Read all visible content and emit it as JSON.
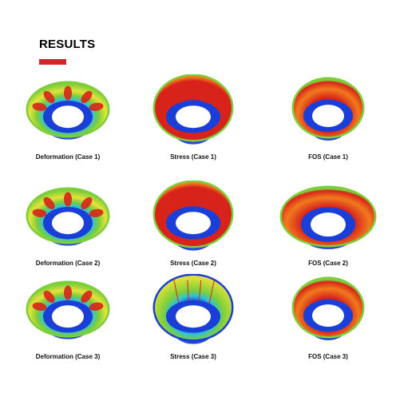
{
  "header": {
    "title": "RESULTS",
    "accent_color": "#d4262a"
  },
  "grid": {
    "rows": [
      [
        {
          "caption": "Deformation (Case 1)",
          "variant": "deformation"
        },
        {
          "caption": "Stress (Case 1)",
          "variant": "stress"
        },
        {
          "caption": "FOS (Case 1)",
          "variant": "fos"
        }
      ],
      [
        {
          "caption": "Deformation (Case 2)",
          "variant": "deformation"
        },
        {
          "caption": "Stress (Case 2)",
          "variant": "stress"
        },
        {
          "caption": "FOS (Case 2)",
          "variant": "fos-wide"
        }
      ],
      [
        {
          "caption": "Deformation (Case 3)",
          "variant": "deformation"
        },
        {
          "caption": "Stress (Case 3)",
          "variant": "stress-green"
        },
        {
          "caption": "FOS (Case 3)",
          "variant": "fos"
        }
      ]
    ]
  },
  "palette": {
    "red": "#d8231b",
    "orange": "#f07b1c",
    "yellow": "#e6e23a",
    "green": "#7ccf3a",
    "cyan": "#2fc1d8",
    "blue": "#1a3fd8",
    "white": "#ffffff"
  }
}
